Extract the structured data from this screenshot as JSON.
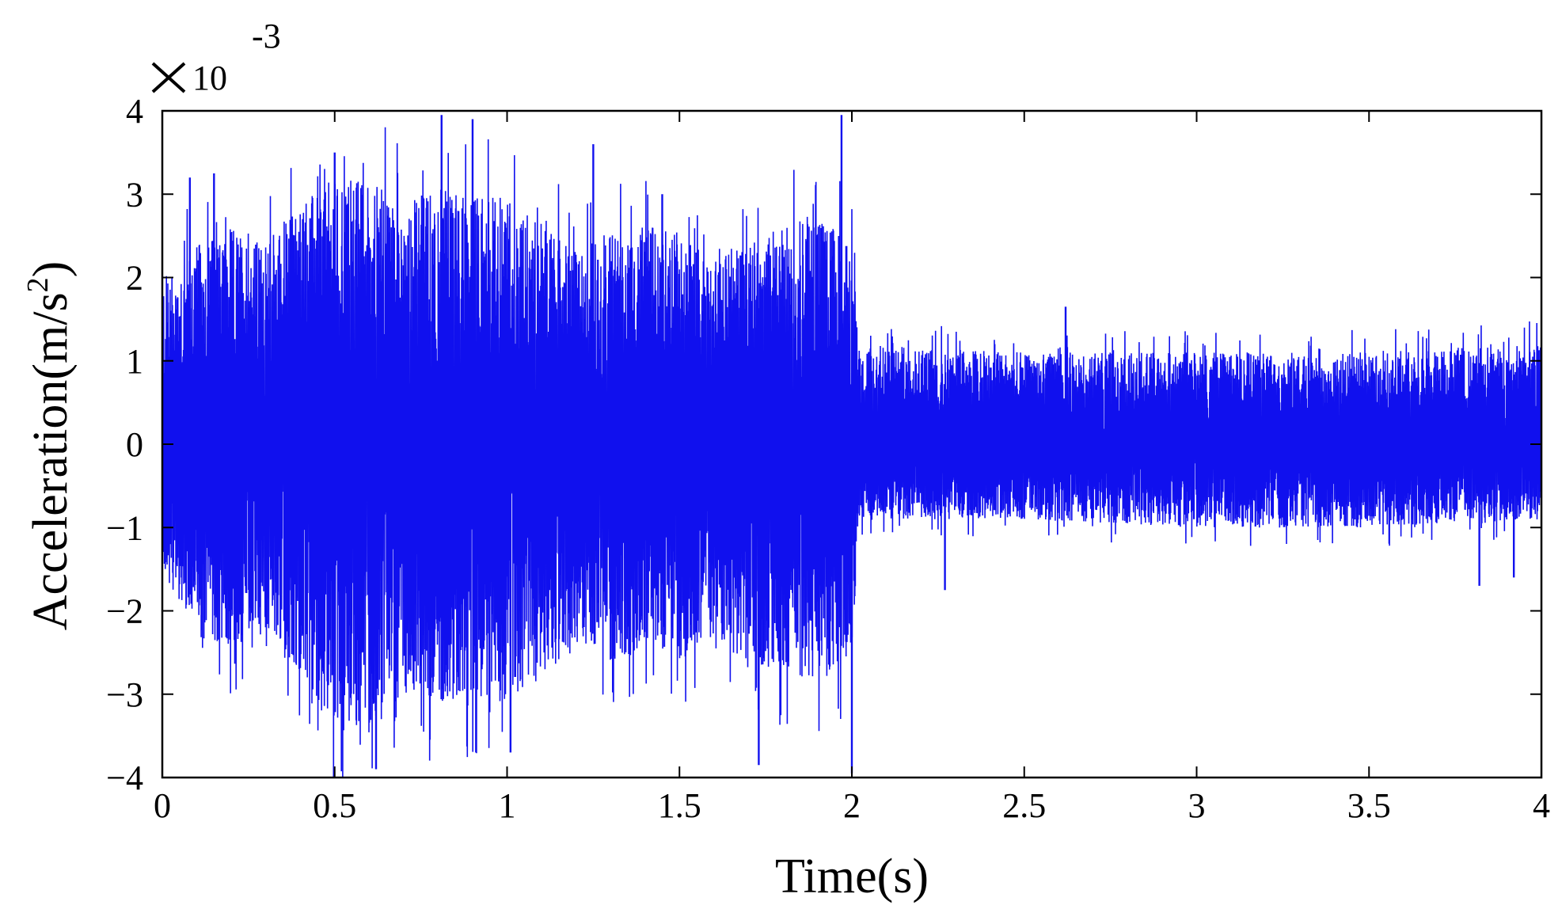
{
  "chart_data": {
    "type": "line",
    "title": "",
    "xlabel": "Time(s)",
    "ylabel": "Acceleration(m/s",
    "ylabel_sup": "2",
    "ylabel_close": ")",
    "multiplier": {
      "base": "10",
      "exponent": "-3"
    },
    "xlim": [
      0,
      4
    ],
    "ylim": [
      -4,
      4
    ],
    "y_scale": 0.001,
    "xticks": [
      "0",
      "0.5",
      "1",
      "1.5",
      "2",
      "2.5",
      "3",
      "3.5",
      "4"
    ],
    "yticks": [
      "4",
      "3",
      "2",
      "1",
      "0",
      "−1",
      "−2",
      "−3",
      "−4"
    ],
    "grid": false,
    "series_color": "#1010ee",
    "series": [
      {
        "envelope": [
          {
            "t": 0.0,
            "max": 2.0,
            "min": -1.5
          },
          {
            "t": 0.1,
            "max": 2.4,
            "min": -2.3
          },
          {
            "t": 0.2,
            "max": 2.6,
            "min": -2.5
          },
          {
            "t": 0.3,
            "max": 2.4,
            "min": -2.2
          },
          {
            "t": 0.4,
            "max": 2.9,
            "min": -2.8
          },
          {
            "t": 0.5,
            "max": 3.2,
            "min": -3.3
          },
          {
            "t": 0.6,
            "max": 3.2,
            "min": -3.5
          },
          {
            "t": 0.7,
            "max": 2.9,
            "min": -3.0
          },
          {
            "t": 0.8,
            "max": 3.1,
            "min": -3.1
          },
          {
            "t": 0.9,
            "max": 3.0,
            "min": -3.0
          },
          {
            "t": 1.0,
            "max": 3.0,
            "min": -3.1
          },
          {
            "t": 1.1,
            "max": 2.7,
            "min": -2.8
          },
          {
            "t": 1.2,
            "max": 2.3,
            "min": -2.4
          },
          {
            "t": 1.3,
            "max": 2.6,
            "min": -2.6
          },
          {
            "t": 1.4,
            "max": 2.6,
            "min": -2.5
          },
          {
            "t": 1.5,
            "max": 2.6,
            "min": -2.6
          },
          {
            "t": 1.6,
            "max": 2.2,
            "min": -2.3
          },
          {
            "t": 1.7,
            "max": 2.5,
            "min": -2.7
          },
          {
            "t": 1.8,
            "max": 2.6,
            "min": -2.7
          },
          {
            "t": 1.9,
            "max": 2.8,
            "min": -2.9
          },
          {
            "t": 2.0,
            "max": 2.4,
            "min": -2.6
          },
          {
            "t": 2.02,
            "max": 1.2,
            "min": -0.9
          },
          {
            "t": 2.5,
            "max": 1.1,
            "min": -0.9
          },
          {
            "t": 3.0,
            "max": 1.1,
            "min": -1.0
          },
          {
            "t": 3.5,
            "max": 1.1,
            "min": -1.0
          },
          {
            "t": 4.0,
            "max": 1.2,
            "min": -0.9
          }
        ],
        "peaks": [
          {
            "t": 0.08,
            "v": 3.2
          },
          {
            "t": 0.15,
            "v": 3.25
          },
          {
            "t": 0.5,
            "v": 3.5
          },
          {
            "t": 0.62,
            "v": -3.9
          },
          {
            "t": 0.81,
            "v": 3.95
          },
          {
            "t": 0.9,
            "v": 3.9
          },
          {
            "t": 0.91,
            "v": -3.7
          },
          {
            "t": 1.01,
            "v": -3.7
          },
          {
            "t": 1.25,
            "v": 3.6
          },
          {
            "t": 1.45,
            "v": 3.0
          },
          {
            "t": 1.73,
            "v": -3.85
          },
          {
            "t": 1.97,
            "v": 3.95
          },
          {
            "t": 2.0,
            "v": -3.95
          },
          {
            "t": 2.27,
            "v": -1.75
          },
          {
            "t": 2.62,
            "v": 1.65
          },
          {
            "t": 3.82,
            "v": -1.7
          },
          {
            "t": 3.92,
            "v": -1.6
          }
        ]
      }
    ]
  }
}
